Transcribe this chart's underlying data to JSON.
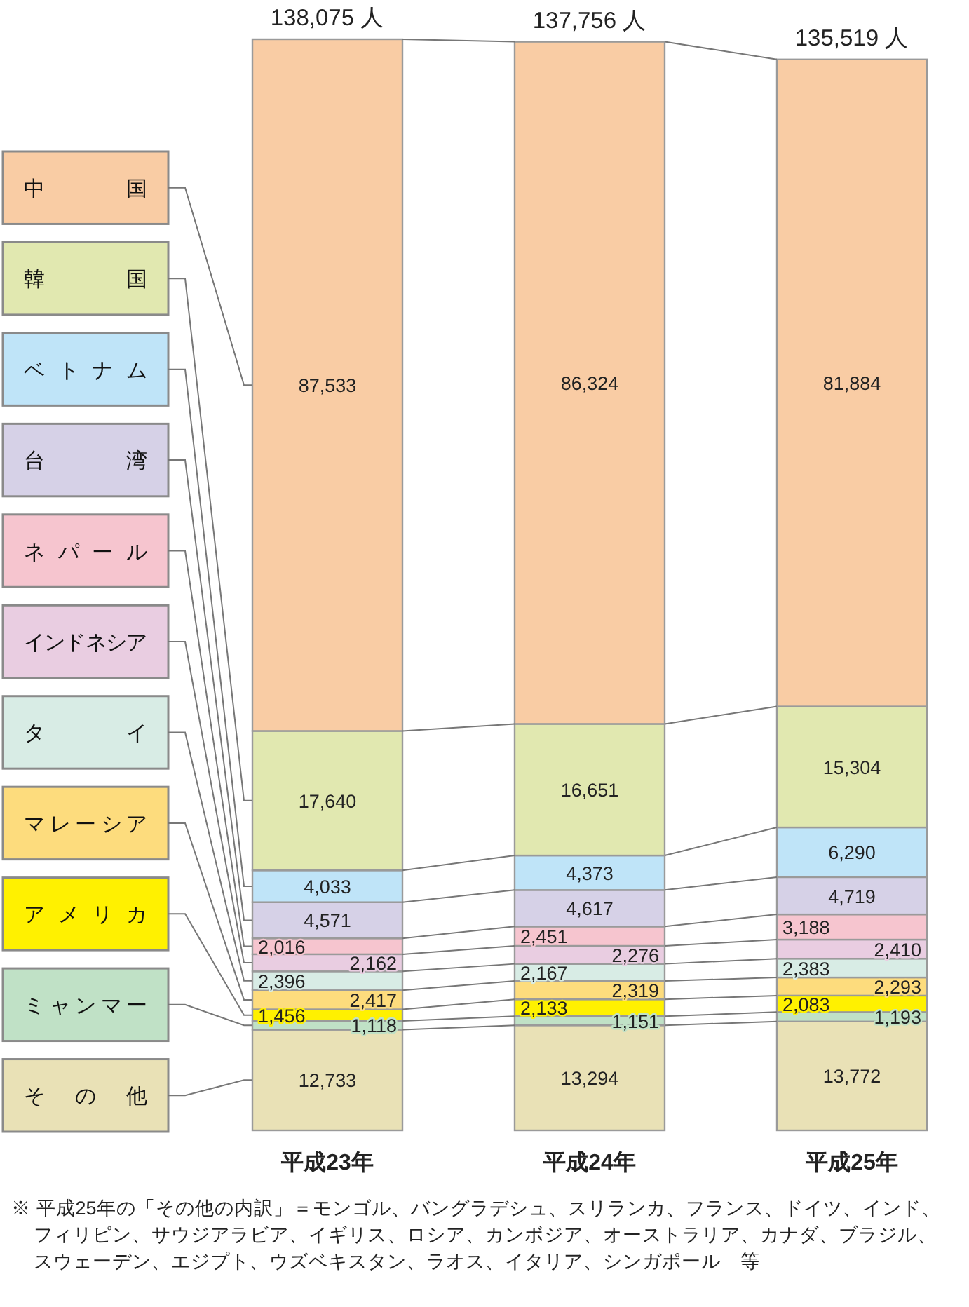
{
  "chart_data": {
    "type": "bar",
    "stacked": true,
    "categories": [
      "平成23年",
      "平成24年",
      "平成25年"
    ],
    "series": [
      {
        "name": "その他",
        "color": "#e9e1b6",
        "values": [
          12733,
          13294,
          13772
        ],
        "value_labels": [
          "12,733",
          "13,294",
          "13,772"
        ]
      },
      {
        "name": "ミャンマー",
        "color": "#c0e1c6",
        "values": [
          1118,
          1151,
          1193
        ],
        "value_labels": [
          "1,118",
          "1,151",
          "1,193"
        ]
      },
      {
        "name": "アメリカ",
        "color": "#fff100",
        "values": [
          1456,
          2133,
          2083
        ],
        "value_labels": [
          "1,456",
          "2,133",
          "2,083"
        ]
      },
      {
        "name": "マレーシア",
        "color": "#fddc7d",
        "values": [
          2417,
          2319,
          2293
        ],
        "value_labels": [
          "2,417",
          "2,319",
          "2,293"
        ]
      },
      {
        "name": "タイ",
        "color": "#d8ece5",
        "values": [
          2396,
          2167,
          2383
        ],
        "value_labels": [
          "2,396",
          "2,167",
          "2,383"
        ]
      },
      {
        "name": "インドネシア",
        "color": "#e9cde1",
        "values": [
          2162,
          2276,
          2410
        ],
        "value_labels": [
          "2,162",
          "2,276",
          "2,410"
        ]
      },
      {
        "name": "ネパール",
        "color": "#f6c5cf",
        "values": [
          2016,
          2451,
          3188
        ],
        "value_labels": [
          "2,016",
          "2,451",
          "3,188"
        ]
      },
      {
        "name": "台湾",
        "color": "#d6d1e7",
        "values": [
          4571,
          4617,
          4719
        ],
        "value_labels": [
          "4,571",
          "4,617",
          "4,719"
        ]
      },
      {
        "name": "ベトナム",
        "color": "#bfe4f8",
        "values": [
          4033,
          4373,
          6290
        ],
        "value_labels": [
          "4,033",
          "4,373",
          "6,290"
        ]
      },
      {
        "name": "韓国",
        "color": "#e1e8b0",
        "values": [
          17640,
          16651,
          15304
        ],
        "value_labels": [
          "17,640",
          "16,651",
          "15,304"
        ]
      },
      {
        "name": "中国",
        "color": "#f9cca4",
        "values": [
          87533,
          86324,
          81884
        ],
        "value_labels": [
          "87,533",
          "86,324",
          "81,884"
        ]
      }
    ],
    "totals": [
      "138,075 人",
      "137,756 人",
      "135,519 人"
    ],
    "legend": "left",
    "annotations": [
      "※ 平成25年の「その他の内訳」＝モンゴル、バングラデシュ、スリランカ、フランス、ドイツ、インド、フィリピン、サウジアラビア、イギリス、ロシア、カンボジア、オーストラリア、カナダ、ブラジル、スウェーデン、エジプト、ウズベキスタン、ラオス、イタリア、シンガポール　等"
    ]
  }
}
